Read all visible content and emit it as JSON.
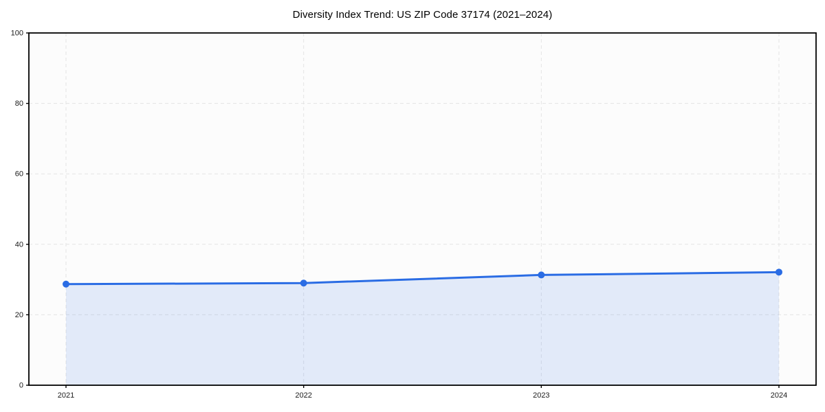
{
  "chart_data": {
    "type": "line",
    "title": "Diversity Index Trend: US ZIP Code 37174 (2021–2024)",
    "x": [
      "2021",
      "2022",
      "2023",
      "2024"
    ],
    "series": [
      {
        "name": "Diversity Index",
        "values": [
          28.7,
          29.0,
          31.3,
          32.1
        ]
      }
    ],
    "xlabel": "",
    "ylabel": "",
    "ylim": [
      0,
      100
    ],
    "yticks": [
      0,
      20,
      40,
      60,
      80,
      100
    ],
    "grid": "dashed-both-axes",
    "legend": "none",
    "area_fill_to_zero": true,
    "marker": "circle",
    "colors": {
      "line": "#2a6ce4",
      "marker": "#2a6ce4",
      "area": "rgba(42,108,228,0.12)",
      "grid": "#e4e4e4",
      "axis": "#000000",
      "tick_label": "#1a1a1a",
      "plot_bg": "#fcfcfc",
      "figure_bg": "#ffffff"
    }
  }
}
